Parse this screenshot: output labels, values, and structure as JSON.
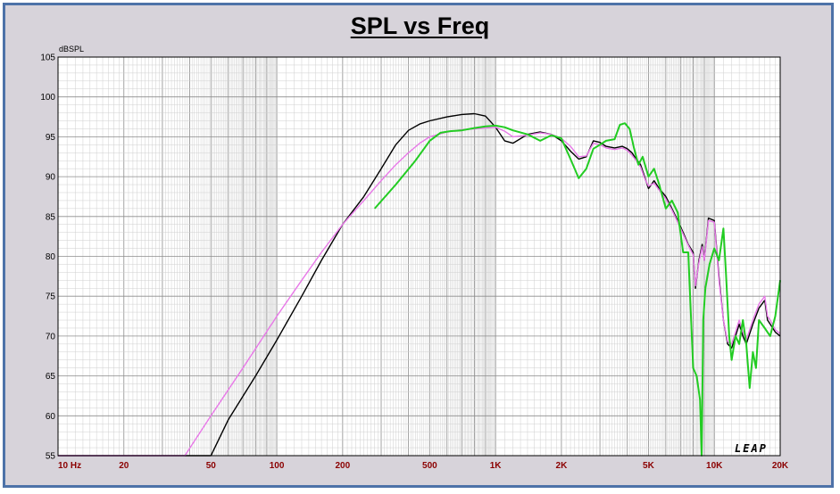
{
  "chart_data": {
    "type": "line",
    "title": "SPL vs Freq",
    "ylabel": "dBSPL",
    "xlabel": "",
    "xscale": "log",
    "xlim": [
      10,
      20000
    ],
    "ylim": [
      55,
      105
    ],
    "grid": true,
    "x_ticks": [
      {
        "value": 10,
        "label": "10 Hz"
      },
      {
        "value": 20,
        "label": "20"
      },
      {
        "value": 50,
        "label": "50"
      },
      {
        "value": 100,
        "label": "100"
      },
      {
        "value": 200,
        "label": "200"
      },
      {
        "value": 500,
        "label": "500"
      },
      {
        "value": 1000,
        "label": "1K"
      },
      {
        "value": 2000,
        "label": "2K"
      },
      {
        "value": 5000,
        "label": "5K"
      },
      {
        "value": 10000,
        "label": "10K"
      },
      {
        "value": 20000,
        "label": "20K"
      }
    ],
    "y_ticks": [
      55,
      60,
      65,
      70,
      75,
      80,
      85,
      90,
      95,
      100,
      105
    ],
    "brand_text": "LEAP",
    "series": [
      {
        "color": "#000000",
        "x": [
          10,
          50,
          60,
          80,
          100,
          130,
          160,
          200,
          250,
          300,
          350,
          400,
          450,
          500,
          600,
          700,
          800,
          900,
          1000,
          1100,
          1200,
          1400,
          1600,
          1800,
          2000,
          2200,
          2400,
          2600,
          2800,
          3000,
          3200,
          3500,
          3800,
          4000,
          4200,
          4400,
          4600,
          4800,
          5000,
          5300,
          5600,
          6000,
          6400,
          6800,
          7200,
          7600,
          8000,
          8200,
          8500,
          8800,
          9000,
          9400,
          10000,
          10500,
          11000,
          11500,
          12000,
          12500,
          13000,
          13500,
          14000,
          15000,
          16000,
          17000,
          17500,
          18000,
          19000,
          20000
        ],
        "y": [
          55,
          55,
          59.5,
          65,
          69.5,
          75,
          79.5,
          84,
          87.5,
          91,
          94,
          95.8,
          96.6,
          97,
          97.5,
          97.8,
          97.9,
          97.6,
          96.2,
          94.5,
          94.2,
          95.3,
          95.6,
          95.3,
          94.5,
          93.2,
          92.2,
          92.5,
          94.5,
          94.3,
          93.8,
          93.6,
          93.8,
          93.5,
          93,
          92.2,
          91.5,
          90,
          88.5,
          89.5,
          88.5,
          87.5,
          86,
          84.5,
          83,
          81.5,
          80.5,
          76,
          79.5,
          81.5,
          79.5,
          84.8,
          84.5,
          77.5,
          72,
          69,
          68.5,
          70,
          71.5,
          70,
          69,
          71.5,
          73.5,
          74.5,
          72,
          71.5,
          70.5,
          70
        ]
      },
      {
        "color": "#e878e8",
        "x": [
          10,
          38,
          50,
          70,
          100,
          130,
          160,
          200,
          250,
          300,
          350,
          400,
          450,
          500,
          600,
          700,
          800,
          900,
          1000,
          1100,
          1200,
          1400,
          1600,
          1800,
          2000,
          2200,
          2400,
          2600,
          2800,
          3000,
          3200,
          3500,
          3800,
          4000,
          4200,
          4400,
          4600,
          4800,
          5000,
          5300,
          5600,
          6000,
          6400,
          6800,
          7200,
          7600,
          8000,
          8200,
          8500,
          8800,
          9000,
          9400,
          10000,
          10500,
          11000,
          11500,
          12000,
          12500,
          13000,
          13500,
          14000,
          15000,
          16000,
          17000,
          17500,
          18000,
          19000,
          20000
        ],
        "y": [
          55,
          55,
          60,
          66,
          72.5,
          77,
          80.5,
          84,
          87,
          89.5,
          91.5,
          93,
          94.2,
          95,
          95.6,
          95.9,
          96,
          96.1,
          96.2,
          95.7,
          95,
          95.2,
          95.5,
          95.3,
          94.8,
          93.8,
          92.5,
          92.6,
          94.2,
          94,
          93.6,
          93.4,
          93.6,
          93.3,
          92.7,
          92,
          91.2,
          89.8,
          88.8,
          89.2,
          88.3,
          87.2,
          85.8,
          84.3,
          82.8,
          81.4,
          80.2,
          76.3,
          79.2,
          81.2,
          79.5,
          84.5,
          84.3,
          77,
          72,
          69.3,
          69,
          70.5,
          72,
          70.5,
          69.5,
          72,
          74,
          75,
          72.5,
          72,
          70.8,
          70.3
        ]
      },
      {
        "color": "#22cc22",
        "x": [
          280,
          350,
          430,
          500,
          560,
          620,
          700,
          800,
          900,
          1000,
          1100,
          1200,
          1400,
          1600,
          1800,
          2000,
          2200,
          2400,
          2600,
          2800,
          3000,
          3200,
          3500,
          3700,
          3900,
          4100,
          4300,
          4500,
          4700,
          5000,
          5300,
          5600,
          6000,
          6400,
          6800,
          7200,
          7600,
          8000,
          8300,
          8600,
          8750,
          8900,
          9100,
          9500,
          10000,
          10500,
          11000,
          11300,
          11700,
          12000,
          12500,
          13000,
          13500,
          14000,
          14500,
          15000,
          15500,
          16000,
          17000,
          18000,
          19000,
          20000
        ],
        "y": [
          86,
          89,
          92,
          94.5,
          95.5,
          95.7,
          95.8,
          96.1,
          96.3,
          96.4,
          96.2,
          95.8,
          95.3,
          94.5,
          95.2,
          94.8,
          92.2,
          89.8,
          91,
          93.5,
          94,
          94.5,
          94.7,
          96.5,
          96.7,
          96,
          93.5,
          91.5,
          92.5,
          90,
          91,
          89,
          86,
          87,
          85.5,
          80.5,
          80.5,
          66,
          65,
          62,
          55,
          72,
          76,
          79,
          81,
          79.5,
          83.5,
          78,
          70,
          67,
          70,
          69,
          72,
          69,
          63.5,
          68,
          66,
          72,
          71,
          70,
          72.5,
          77
        ]
      }
    ]
  }
}
